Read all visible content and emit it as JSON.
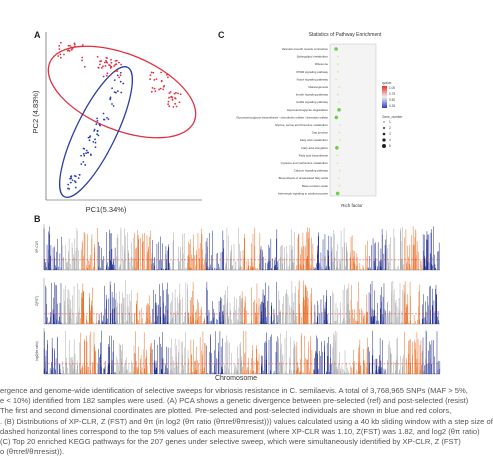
{
  "panels": {
    "A": {
      "label": "A",
      "xlabel": "PC1(5.34%)",
      "ylabel": "PC2 (4.83%)"
    },
    "C": {
      "label": "C",
      "title": "Statistics of Pathway Enrichment",
      "xlabel": "Rich factor",
      "pathways": [
        "Vascular smooth muscle contraction",
        "Sphingolipid metabolism",
        "Ribosome",
        "PPAR signaling pathway",
        "Notch signaling pathway",
        "Melanogenesis",
        "Insulin signaling pathway",
        "GnRH signaling pathway",
        "Glycosaminoglycan degradation",
        "Glycosaminoglycan biosynthesis - chondroitin sulfate / dermatan sulfate",
        "Glycine, serine and threonine metabolism",
        "Gap junction",
        "Fatty acid metabolism",
        "Fatty acid elongation",
        "Fatty acid biosynthesis",
        "Cysteine and methionine metabolism",
        "Calcium signaling pathway",
        "Biosynthesis of unsaturated fatty acids",
        "Base excision repair",
        "Adrenergic signaling in cardiomyocytes"
      ],
      "legend_qvalue_title": "qvalue",
      "legend_qvalue_ticks": [
        "1.00",
        "0.75",
        "0.50",
        "0.25"
      ],
      "legend_gene_title": "Gene_number",
      "legend_gene_values": [
        "1",
        "2",
        "3",
        "4",
        "5"
      ]
    },
    "B": {
      "label": "B",
      "xlabel": "Chromosome",
      "tracks": [
        "XP-CLR",
        "Z(FST)",
        "log2(θπ ratio)"
      ]
    }
  },
  "caption": [
    "ergence and genome-wide identification of selective sweeps for vibriosis resistance in C. semilaevis. A total of 3,768,965 SNPs (MAF > 5%,",
    "e < 10%) identified from 182 samples were used. (A) PCA shows a genetic divergence between pre-selected (ref) and post-selected (resist)",
    "The first and second dimensional coordinates are plotted. Pre-selected and post-selected individuals are shown in blue and red colors,",
    ". (B) Distributions of XP-CLR, Z (FST) and θπ (in log2 (θπ ratio (θπref/θπresist))) values calculated using a 40 kb sliding window with a step size of",
    "dashed horizontal lines correspond to the top 5% values of each measurement (where XP-CLR was 1.10, Z(FST) was 1.82, and log2 (θπ ratio)",
    "(C) Top 20 enriched KEGG pathways for the 207 genes under selective sweep, which were simultaneously identified by XP-CLR, Z (FST)",
    "o (θπref/θπresist))."
  ],
  "colors": {
    "red_group": "#e03040",
    "blue_group": "#2a3fa8",
    "orange": "#e8702a",
    "gray": "#a8a8a8",
    "navy": "#1f2d8c"
  }
}
